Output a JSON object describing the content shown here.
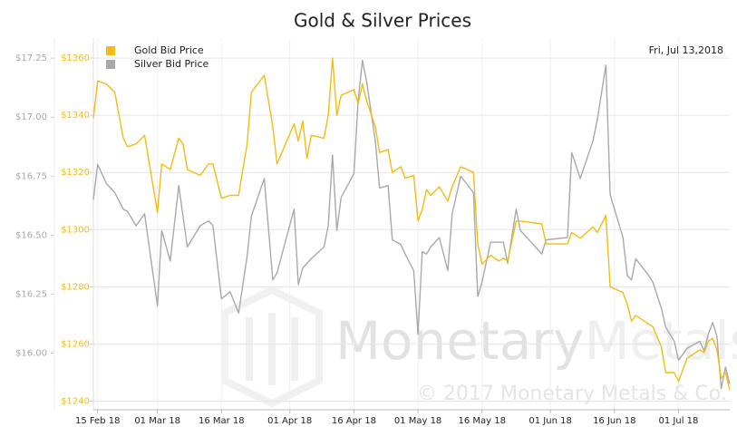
{
  "chart_data": {
    "type": "line",
    "title": "Gold & Silver Prices",
    "annotation": "Fri, Jul 13,2018",
    "watermark": [
      "Monetary",
      "Metals"
    ],
    "copyright": "© 2017 Monetary Metals & Co.",
    "x": [
      "2018-02-14",
      "2018-02-15",
      "2018-02-17",
      "2018-02-19",
      "2018-02-21",
      "2018-02-22",
      "2018-02-24",
      "2018-02-26",
      "2018-03-01",
      "2018-03-02",
      "2018-03-04",
      "2018-03-06",
      "2018-03-07",
      "2018-03-08",
      "2018-03-11",
      "2018-03-13",
      "2018-03-14",
      "2018-03-16",
      "2018-03-18",
      "2018-03-20",
      "2018-03-22",
      "2018-03-23",
      "2018-03-26",
      "2018-03-28",
      "2018-03-29",
      "2018-04-02",
      "2018-04-03",
      "2018-04-04",
      "2018-04-05",
      "2018-04-06",
      "2018-04-09",
      "2018-04-10",
      "2018-04-11",
      "2018-04-12",
      "2018-04-13",
      "2018-04-16",
      "2018-04-17",
      "2018-04-18",
      "2018-04-19",
      "2018-04-21",
      "2018-04-22",
      "2018-04-24",
      "2018-04-25",
      "2018-04-27",
      "2018-04-28",
      "2018-04-30",
      "2018-05-01",
      "2018-05-02",
      "2018-05-03",
      "2018-05-04",
      "2018-05-06",
      "2018-05-08",
      "2018-05-09",
      "2018-05-11",
      "2018-05-14",
      "2018-05-15",
      "2018-05-16",
      "2018-05-18",
      "2018-05-20",
      "2018-05-21",
      "2018-05-22",
      "2018-05-24",
      "2018-05-25",
      "2018-05-30",
      "2018-05-31",
      "2018-06-05",
      "2018-06-06",
      "2018-06-08",
      "2018-06-11",
      "2018-06-12",
      "2018-06-14",
      "2018-06-15",
      "2018-06-18",
      "2018-06-19",
      "2018-06-20",
      "2018-06-21",
      "2018-06-24",
      "2018-06-25",
      "2018-06-27",
      "2018-06-28",
      "2018-06-30",
      "2018-07-01",
      "2018-07-03",
      "2018-07-06",
      "2018-07-07",
      "2018-07-08",
      "2018-07-09",
      "2018-07-10",
      "2018-07-11",
      "2018-07-12",
      "2018-07-13"
    ],
    "xlim": [
      "2018-02-14",
      "2018-07-13"
    ],
    "xticks": [
      {
        "value": "2018-02-15",
        "label": "15 Feb 18"
      },
      {
        "value": "2018-03-01",
        "label": "01 Mar 18"
      },
      {
        "value": "2018-03-16",
        "label": "16 Mar 18"
      },
      {
        "value": "2018-04-01",
        "label": "01 Apr 18"
      },
      {
        "value": "2018-04-16",
        "label": "16 Apr 18"
      },
      {
        "value": "2018-05-01",
        "label": "01 May 18"
      },
      {
        "value": "2018-05-16",
        "label": "16 May 18"
      },
      {
        "value": "2018-06-01",
        "label": "01 Jun 18"
      },
      {
        "value": "2018-06-16",
        "label": "16 Jun 18"
      },
      {
        "value": "2018-07-01",
        "label": "01 Jul 18"
      }
    ],
    "ylim": [
      1237,
      1367
    ],
    "yticks": [
      {
        "value": 1240,
        "label": "$1240"
      },
      {
        "value": 1260,
        "label": "$1260"
      },
      {
        "value": 1280,
        "label": "$1280"
      },
      {
        "value": 1300,
        "label": "$1300"
      },
      {
        "value": 1320,
        "label": "$1320"
      },
      {
        "value": 1340,
        "label": "$1340"
      },
      {
        "value": 1360,
        "label": "$1360"
      }
    ],
    "y2lim": [
      15.76,
      17.335
    ],
    "y2ticks": [
      {
        "value": 16.0,
        "label": "$16.00"
      },
      {
        "value": 16.25,
        "label": "$16.25"
      },
      {
        "value": 16.5,
        "label": "$16.50"
      },
      {
        "value": 16.75,
        "label": "$16.75"
      },
      {
        "value": 17.0,
        "label": "$17.00"
      },
      {
        "value": 17.25,
        "label": "$17.25"
      }
    ],
    "grid": true,
    "series": [
      {
        "name": "Gold Bid Price",
        "color": "#f2bc14",
        "values": [
          1339,
          1352,
          1351,
          1348,
          1332,
          1329,
          1330,
          1333,
          1306,
          1323,
          1321,
          1332,
          1330,
          1321,
          1319,
          1323,
          1323,
          1311,
          1312,
          1312,
          1330,
          1348,
          1354,
          1336,
          1323,
          1337,
          1331,
          1338,
          1325,
          1333,
          1332,
          1340,
          1360,
          1340,
          1347,
          1349,
          1344,
          1351,
          1345,
          1336,
          1327,
          1328,
          1320,
          1322,
          1318,
          1319,
          1303,
          1307,
          1314,
          1312,
          1315,
          1310,
          1315,
          1322,
          1320,
          1295,
          1288,
          1291,
          1289,
          1290,
          1289,
          1303,
          1303,
          1302,
          1295,
          1295,
          1299,
          1297,
          1301,
          1299,
          1305,
          1280,
          1278,
          1274,
          1268,
          1270,
          1267,
          1266,
          1259,
          1250,
          1250,
          1247,
          1255,
          1258,
          1257,
          1261,
          1262,
          1258,
          1248,
          1250,
          1244
        ]
      },
      {
        "name": "Silver Bid Price",
        "color": "#a9a9a9",
        "axis": "y2",
        "values": [
          16.65,
          16.8,
          16.72,
          16.68,
          16.61,
          16.6,
          16.54,
          16.59,
          16.2,
          16.52,
          16.39,
          16.71,
          16.58,
          16.45,
          16.54,
          16.56,
          16.54,
          16.23,
          16.26,
          16.17,
          16.41,
          16.58,
          16.74,
          16.31,
          16.34,
          16.61,
          16.29,
          16.36,
          16.38,
          16.4,
          16.45,
          16.54,
          16.84,
          16.52,
          16.66,
          16.76,
          17.07,
          17.24,
          17.15,
          16.9,
          16.7,
          16.71,
          16.48,
          16.46,
          16.42,
          16.35,
          16.08,
          16.43,
          16.42,
          16.45,
          16.49,
          16.35,
          16.59,
          16.75,
          16.68,
          16.24,
          16.3,
          16.47,
          16.47,
          16.47,
          16.38,
          16.61,
          16.52,
          16.42,
          16.48,
          16.49,
          16.85,
          16.74,
          16.9,
          16.99,
          17.22,
          16.67,
          16.49,
          16.33,
          16.31,
          16.4,
          16.33,
          16.3,
          16.19,
          16.11,
          16.05,
          15.97,
          16.02,
          16.05,
          16.01,
          16.08,
          16.13,
          16.07,
          15.85,
          15.94,
          15.87
        ]
      }
    ]
  }
}
